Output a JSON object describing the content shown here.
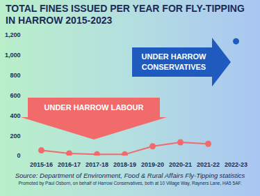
{
  "chart_data": {
    "type": "line",
    "title": "TOTAL FINES ISSUED PER YEAR FOR FLY-TIPPING IN HARROW 2015-2023",
    "categories": [
      "2015-16",
      "2016-17",
      "2017-18",
      "2018-19",
      "2019-20",
      "2020-21",
      "2021-22",
      "2022-23"
    ],
    "series": [
      {
        "name": "UNDER HARROW LABOUR",
        "color": "#f26b6b",
        "marker": "circle",
        "values": [
          55,
          25,
          15,
          15,
          95,
          135,
          120,
          null
        ]
      },
      {
        "name": "UNDER HARROW CONSERVATIVES",
        "color": "#1f5bbf",
        "marker": "circle",
        "values": [
          null,
          null,
          null,
          null,
          null,
          null,
          null,
          1140
        ]
      }
    ],
    "ylim": [
      0,
      1200
    ],
    "yticks": [
      0,
      200,
      400,
      600,
      800,
      1000,
      1200
    ],
    "grid": false,
    "source": "Source: Department of Environment, Food & Rural Affairs Fly-Tipping statistics",
    "footnote": "Promoted by Paul Osborn, on behalf of Harrow Conservatives, both at 10 Village Way, Rayners Lane, HA5 5AF."
  }
}
